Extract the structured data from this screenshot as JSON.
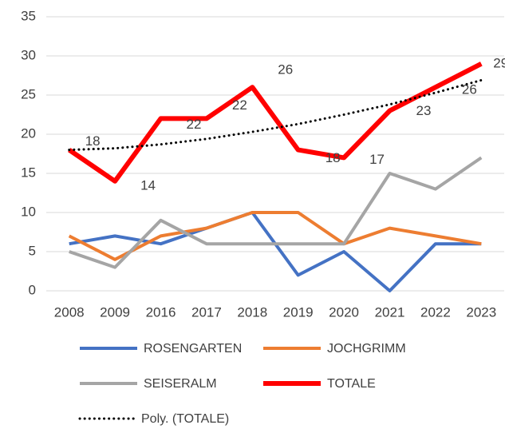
{
  "chart_data": {
    "type": "line",
    "categories": [
      "2008",
      "2009",
      "2016",
      "2017",
      "2018",
      "2019",
      "2020",
      "2021",
      "2022",
      "2023"
    ],
    "series": [
      {
        "name": "ROSENGARTEN",
        "color": "#4472c4",
        "values": [
          6,
          7,
          6,
          8,
          10,
          2,
          5,
          0,
          6,
          6
        ]
      },
      {
        "name": "JOCHGRIMM",
        "color": "#ed7d31",
        "values": [
          7,
          4,
          7,
          8,
          10,
          10,
          6,
          8,
          7,
          6
        ]
      },
      {
        "name": "SEISERALM",
        "color": "#a5a5a5",
        "values": [
          5,
          3,
          9,
          6,
          6,
          6,
          6,
          15,
          13,
          17
        ]
      },
      {
        "name": "TOTALE",
        "color": "#ff0000",
        "values": [
          18,
          14,
          22,
          22,
          26,
          18,
          17,
          23,
          26,
          29
        ],
        "data_labels": true
      },
      {
        "name": "Poly. (TOTALE)",
        "color": "#000000",
        "style": "dotted",
        "values": [
          18,
          18.2,
          18.7,
          19.4,
          20.3,
          21.3,
          22.5,
          23.8,
          25.3,
          26.9
        ]
      }
    ],
    "ylim": [
      0,
      35
    ],
    "yticks": [
      0,
      5,
      10,
      15,
      20,
      25,
      30,
      35
    ],
    "grid": true,
    "legend": "bottom"
  }
}
